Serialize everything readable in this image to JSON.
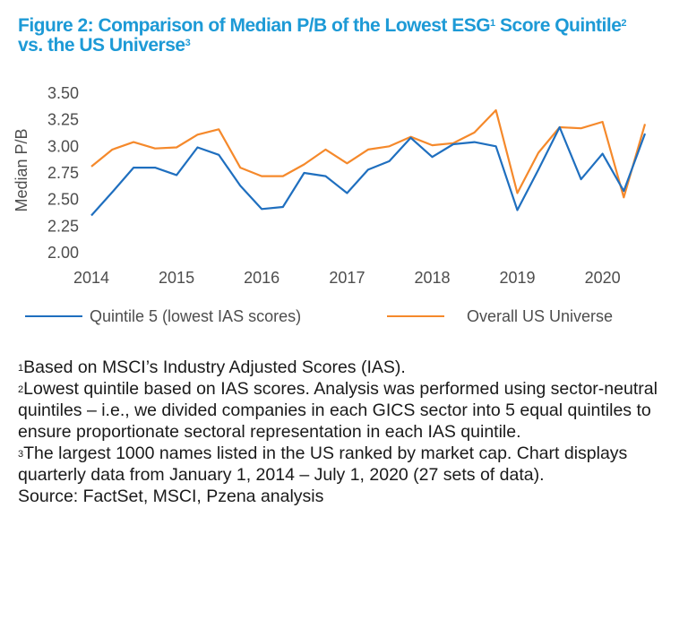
{
  "figure": {
    "title_line1": "Figure 2: Comparison of Median P/B of the Lowest ESG",
    "title_sup1": "1",
    "title_line1_cont": " Score Quintile",
    "title_sup2": "2",
    "title_line2": "vs. the US Universe",
    "title_sup3": "3"
  },
  "chart_data": {
    "type": "line",
    "ylabel": "Median P/B",
    "xlabel": "",
    "ylim": [
      2.0,
      3.5
    ],
    "yticks": [
      "3.50",
      "3.25",
      "3.00",
      "2.75",
      "2.50",
      "2.25",
      "2.00"
    ],
    "ytick_values": [
      3.5,
      3.25,
      3.0,
      2.75,
      2.5,
      2.25,
      2.0
    ],
    "xticks": [
      "2014",
      "2015",
      "2016",
      "2017",
      "2018",
      "2019",
      "2020"
    ],
    "x_start": "2014-01-01",
    "x_end": "2020-07-01",
    "grid": false,
    "legend_position": "bottom",
    "x": [
      "2014-01-01",
      "2014-04-01",
      "2014-07-01",
      "2014-10-01",
      "2015-01-01",
      "2015-04-01",
      "2015-07-01",
      "2015-10-01",
      "2016-01-01",
      "2016-04-01",
      "2016-07-01",
      "2016-10-01",
      "2017-01-01",
      "2017-04-01",
      "2017-07-01",
      "2017-10-01",
      "2018-01-01",
      "2018-04-01",
      "2018-07-01",
      "2018-10-01",
      "2019-01-01",
      "2019-04-01",
      "2019-07-01",
      "2019-10-01",
      "2020-01-01",
      "2020-04-01",
      "2020-07-01"
    ],
    "series": [
      {
        "name": "Quintile 5 (lowest IAS scores)",
        "color": "#1f6fbf",
        "values": [
          2.35,
          2.57,
          2.8,
          2.8,
          2.73,
          2.99,
          2.92,
          2.63,
          2.41,
          2.43,
          2.75,
          2.72,
          2.56,
          2.78,
          2.86,
          3.08,
          2.9,
          3.02,
          3.04,
          3.0,
          2.4,
          2.78,
          3.18,
          2.69,
          2.93,
          2.58,
          3.12
        ]
      },
      {
        "name": "Overall US Universe",
        "color": "#f5892b",
        "values": [
          2.81,
          2.97,
          3.04,
          2.98,
          2.99,
          3.11,
          3.16,
          2.8,
          2.72,
          2.72,
          2.83,
          2.97,
          2.84,
          2.97,
          3.0,
          3.09,
          3.01,
          3.03,
          3.13,
          3.34,
          2.56,
          2.94,
          3.18,
          3.17,
          3.23,
          2.52,
          3.21
        ]
      }
    ]
  },
  "notes": {
    "n1_sup": "1",
    "n1": "Based on MSCI’s Industry Adjusted Scores (IAS).",
    "n2_sup": "2",
    "n2": "Lowest quintile based on IAS scores. Analysis was performed using sector-neutral quintiles – i.e., we divided companies in each GICS sector into 5 equal quintiles to ensure proportionate sectoral representation in each IAS quintile.",
    "n3_sup": "3",
    "n3": "The largest 1000 names listed in the US ranked by market cap. Chart displays quarterly data from January 1, 2014 – July 1, 2020 (27 sets of data).",
    "source": "Source: FactSet, MSCI, Pzena analysis"
  }
}
